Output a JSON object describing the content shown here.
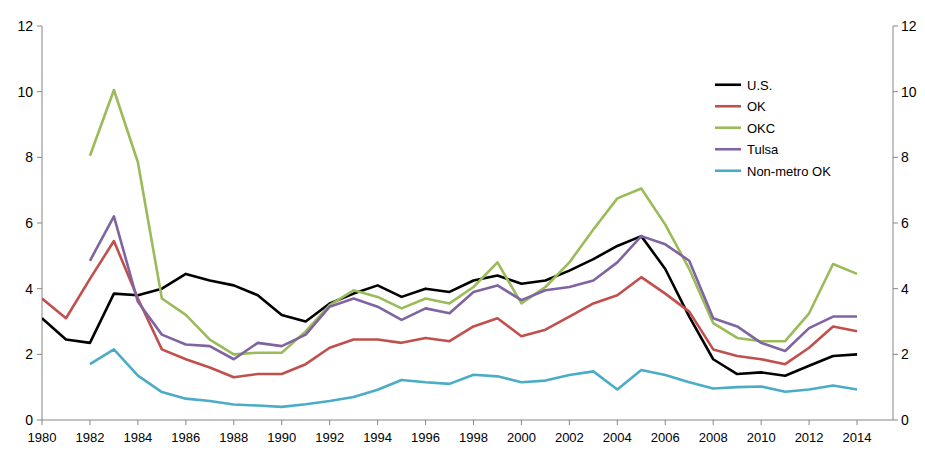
{
  "chart_data": {
    "type": "line",
    "x": [
      1980,
      1981,
      1982,
      1983,
      1984,
      1985,
      1986,
      1987,
      1988,
      1989,
      1990,
      1991,
      1992,
      1993,
      1994,
      1995,
      1996,
      1997,
      1998,
      1999,
      2000,
      2001,
      2002,
      2003,
      2004,
      2005,
      2006,
      2007,
      2008,
      2009,
      2010,
      2011,
      2012,
      2013,
      2014
    ],
    "xlim": [
      1980,
      2015.5
    ],
    "xticks": [
      1980,
      1982,
      1984,
      1986,
      1988,
      1990,
      1992,
      1994,
      1996,
      1998,
      2000,
      2002,
      2004,
      2006,
      2008,
      2010,
      2012,
      2014
    ],
    "ylim": [
      0,
      12
    ],
    "yticks": [
      0,
      2,
      4,
      6,
      8,
      10,
      12
    ],
    "y2lim": [
      0,
      12
    ],
    "y2ticks": [
      0,
      2,
      4,
      6,
      8,
      10,
      12
    ],
    "grid": false,
    "legend": "top-right",
    "series": [
      {
        "name": "U.S.",
        "color": "#000000",
        "values": [
          3.1,
          2.45,
          2.35,
          3.85,
          3.8,
          4.0,
          4.45,
          4.25,
          4.1,
          3.8,
          3.2,
          3.0,
          3.55,
          3.85,
          4.1,
          3.75,
          4.0,
          3.9,
          4.25,
          4.4,
          4.15,
          4.25,
          4.55,
          4.9,
          5.3,
          5.6,
          4.6,
          3.15,
          1.85,
          1.4,
          1.45,
          1.35,
          1.65,
          1.95,
          2.0
        ]
      },
      {
        "name": "OK",
        "color": "#c0504d",
        "values": [
          3.7,
          3.1,
          4.3,
          5.45,
          3.7,
          2.15,
          1.85,
          1.6,
          1.3,
          1.4,
          1.4,
          1.7,
          2.2,
          2.45,
          2.45,
          2.35,
          2.5,
          2.4,
          2.85,
          3.1,
          2.55,
          2.75,
          3.15,
          3.55,
          3.8,
          4.35,
          3.85,
          3.3,
          2.15,
          1.95,
          1.85,
          1.7,
          2.2,
          2.85,
          2.7
        ]
      },
      {
        "name": "OKC",
        "color": "#9bbb59",
        "values": [
          null,
          null,
          8.05,
          10.05,
          7.85,
          3.7,
          3.2,
          2.45,
          2.0,
          2.05,
          2.05,
          2.7,
          3.5,
          3.95,
          3.75,
          3.4,
          3.7,
          3.55,
          4.05,
          4.8,
          3.55,
          4.05,
          4.8,
          5.8,
          6.75,
          7.05,
          5.95,
          4.6,
          2.95,
          2.5,
          2.4,
          2.4,
          3.25,
          4.75,
          4.45
        ]
      },
      {
        "name": "Tulsa",
        "color": "#8064a2",
        "values": [
          null,
          null,
          4.85,
          6.2,
          3.6,
          2.6,
          2.3,
          2.25,
          1.85,
          2.35,
          2.25,
          2.6,
          3.45,
          3.7,
          3.45,
          3.05,
          3.4,
          3.25,
          3.9,
          4.1,
          3.65,
          3.95,
          4.05,
          4.25,
          4.8,
          5.6,
          5.35,
          4.85,
          3.1,
          2.85,
          2.35,
          2.1,
          2.8,
          3.15,
          3.15
        ]
      },
      {
        "name": "Non-metro OK",
        "color": "#4bacc6",
        "values": [
          null,
          null,
          1.7,
          2.15,
          1.35,
          0.85,
          0.65,
          0.58,
          0.47,
          0.44,
          0.4,
          0.48,
          0.58,
          0.7,
          0.92,
          1.22,
          1.15,
          1.1,
          1.38,
          1.33,
          1.15,
          1.2,
          1.37,
          1.48,
          0.93,
          1.52,
          1.37,
          1.15,
          0.96,
          1.0,
          1.02,
          0.86,
          0.93,
          1.05,
          0.93
        ]
      }
    ]
  }
}
